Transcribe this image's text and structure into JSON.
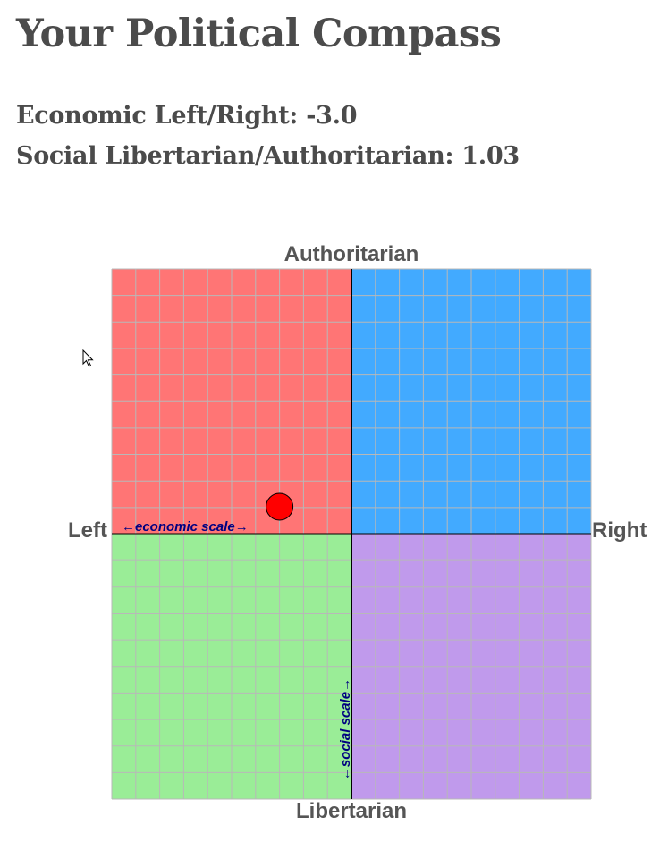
{
  "page": {
    "title": "Your Political Compass",
    "economic": {
      "label": "Economic Left/Right:",
      "value": "-3.0"
    },
    "social": {
      "label": "Social Libertarian/Authoritarian:",
      "value": "1.03"
    }
  },
  "chart_data": {
    "type": "scatter",
    "title": "",
    "axes": {
      "top": "Authoritarian",
      "bottom": "Libertarian",
      "left": "Left",
      "right": "Right"
    },
    "xlim": [
      -10,
      10
    ],
    "ylim": [
      -10,
      10
    ],
    "grid": true,
    "grid_step": 1,
    "annotations": {
      "economic": "←economic scale→",
      "social": "←social scale→"
    },
    "quadrants": {
      "authoritarian_left": "#ff7575",
      "authoritarian_right": "#42aaff",
      "libertarian_left": "#9aed97",
      "libertarian_right": "#c09aec"
    },
    "grid_color": "#b8b8b8",
    "axis_color": "#000000",
    "annotation_color": "#000080",
    "points": [
      {
        "x": -3.0,
        "y": 1.03,
        "color": "#ff0000"
      }
    ]
  }
}
